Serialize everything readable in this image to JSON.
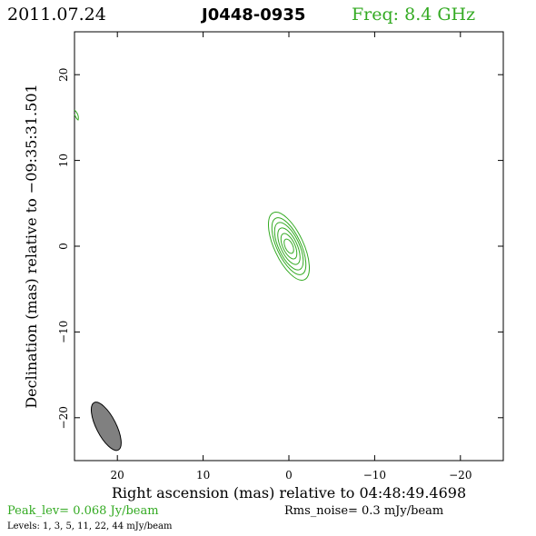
{
  "header": {
    "date": "2011.07.24",
    "source": "J0448-0935",
    "freq": "Freq: 8.4 GHz"
  },
  "colors": {
    "contour": "#33aa22",
    "beam_fill": "#808080",
    "axes": "#000000"
  },
  "footer": {
    "peak": "Peak_lev=  0.068 Jy/beam",
    "rms": "Rms_noise=  0.3 mJy/beam",
    "levels": "Levels:   1,   3,   5,   11,   22,   44 mJy/beam"
  },
  "chart_data": {
    "type": "contour",
    "xlabel": "Right ascension (mas) relative to 04:48:49.4698",
    "ylabel": "Declination (mas) relative to −09:35:31.501",
    "xlim": [
      25,
      -25
    ],
    "ylim": [
      -25,
      25
    ],
    "xticks": [
      20,
      10,
      0,
      -10,
      -20
    ],
    "xtick_labels": [
      "20",
      "10",
      "0",
      "−10",
      "−20"
    ],
    "yticks": [
      20,
      10,
      0,
      -10,
      -20
    ],
    "ytick_labels": [
      "20",
      "10",
      "0",
      "−10",
      "−20"
    ],
    "contour_levels_mJy": [
      1,
      3,
      5,
      11,
      22,
      44
    ],
    "peak_Jy_per_beam": 0.068,
    "rms_noise_mJy_per_beam": 0.3,
    "source_center": [
      0,
      0
    ],
    "contours": [
      {
        "level": 1,
        "cx": 0.0,
        "cy": 0.0,
        "a": 4.3,
        "b": 1.7
      },
      {
        "level": 3,
        "cx": 0.0,
        "cy": 0.0,
        "a": 3.6,
        "b": 1.4
      },
      {
        "level": 5,
        "cx": 0.0,
        "cy": 0.0,
        "a": 3.0,
        "b": 1.2
      },
      {
        "level": 11,
        "cx": 0.0,
        "cy": 0.0,
        "a": 2.3,
        "b": 0.95
      },
      {
        "level": 22,
        "cx": 0.0,
        "cy": 0.0,
        "a": 1.6,
        "b": 0.7
      },
      {
        "level": 44,
        "cx": 0.0,
        "cy": 0.0,
        "a": 0.9,
        "b": 0.45
      }
    ],
    "contour_pa_deg": 25,
    "beam": {
      "cx": 21.3,
      "cy": -21.0,
      "major": 6.2,
      "minor": 2.3,
      "pa_deg": 27
    }
  }
}
